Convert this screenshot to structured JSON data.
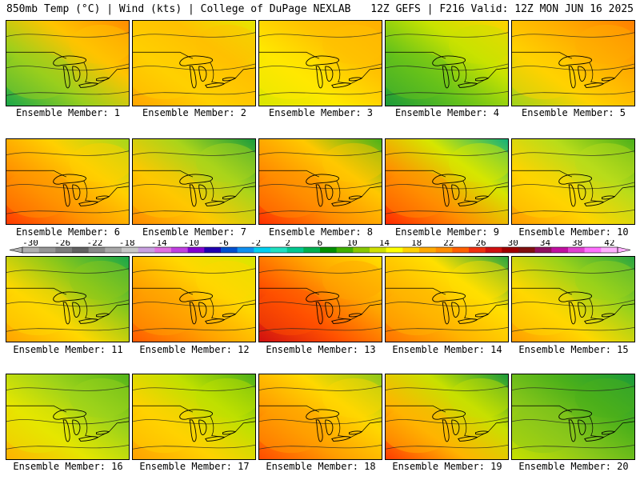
{
  "header": {
    "left_title": "850mb Temp (°C) | Wind (kts) | College of DuPage NEXLAB",
    "right_title": "12Z GEFS | F216 Valid: 12Z MON JUN 16 2025"
  },
  "colorbar": {
    "labels": [
      "-30",
      "-26",
      "-22",
      "-18",
      "-14",
      "-10",
      "-6",
      "-2",
      "2",
      "6",
      "10",
      "14",
      "18",
      "22",
      "26",
      "30",
      "34",
      "38",
      "42"
    ],
    "colors": [
      "#b0b0b0",
      "#969696",
      "#7c7c7c",
      "#626262",
      "#8a8a8a",
      "#a8a8a8",
      "#c8c8c8",
      "#c8a0e0",
      "#e070e0",
      "#c040e0",
      "#8000d0",
      "#2000b0",
      "#0050d0",
      "#1090f0",
      "#00d0f0",
      "#20e0c0",
      "#00c890",
      "#00b050",
      "#009000",
      "#40b000",
      "#88c800",
      "#d0e000",
      "#ffff00",
      "#ffd200",
      "#ffaa00",
      "#ff8c00",
      "#ff6000",
      "#f03010",
      "#d01010",
      "#a00000",
      "#801010",
      "#901060",
      "#c010a0",
      "#e040d0",
      "#ff70ff",
      "#ffb0ff"
    ]
  },
  "members": [
    {
      "label": "Ensemble Member: 1",
      "colors": [
        "#19a74a",
        "#99cf1d",
        "#ffc400",
        "#ff8c00"
      ]
    },
    {
      "label": "Ensemble Member: 2",
      "colors": [
        "#ffa500",
        "#ffd000",
        "#ffc000",
        "#e6e600"
      ]
    },
    {
      "label": "Ensemble Member: 3",
      "colors": [
        "#d8e600",
        "#ffe800",
        "#ffc200",
        "#ffae00"
      ]
    },
    {
      "label": "Ensemble Member: 4",
      "colors": [
        "#1a9a3a",
        "#66c21a",
        "#c9e300",
        "#ffd200"
      ]
    },
    {
      "label": "Ensemble Member: 5",
      "colors": [
        "#9fd21a",
        "#ffd200",
        "#ffad00",
        "#ff7f00"
      ]
    },
    {
      "label": "Ensemble Member: 6",
      "colors": [
        "#ff3a00",
        "#ff9300",
        "#ffd000",
        "#a7d81a"
      ]
    },
    {
      "label": "Ensemble Member: 7",
      "colors": [
        "#ff8a00",
        "#ffc800",
        "#aad41a",
        "#1a9c3c"
      ]
    },
    {
      "label": "Ensemble Member: 8",
      "colors": [
        "#ff3000",
        "#ff8c00",
        "#ffc800",
        "#4ab21a"
      ]
    },
    {
      "label": "Ensemble Member: 9",
      "colors": [
        "#ff2a00",
        "#ff8f00",
        "#d6e600",
        "#12b17a"
      ]
    },
    {
      "label": "Ensemble Member: 10",
      "colors": [
        "#ff9a00",
        "#ffd400",
        "#b8dc1a",
        "#4cb01a"
      ]
    },
    {
      "label": "Ensemble Member: 11",
      "colors": [
        "#ffa200",
        "#ffd800",
        "#8cc81a",
        "#19a74a"
      ]
    },
    {
      "label": "Ensemble Member: 12",
      "colors": [
        "#ff5a00",
        "#ffa000",
        "#ffd800",
        "#d8e600"
      ]
    },
    {
      "label": "Ensemble Member: 13",
      "colors": [
        "#d01010",
        "#ff5000",
        "#ffa400",
        "#ffe000"
      ]
    },
    {
      "label": "Ensemble Member: 14",
      "colors": [
        "#ff7000",
        "#ffb400",
        "#ffe000",
        "#2aa640"
      ]
    },
    {
      "label": "Ensemble Member: 15",
      "colors": [
        "#ff9c00",
        "#ffd800",
        "#9ad21a",
        "#2aa640"
      ]
    },
    {
      "label": "Ensemble Member: 16",
      "colors": [
        "#ffb200",
        "#e6e600",
        "#9cd21a",
        "#52b41a"
      ]
    },
    {
      "label": "Ensemble Member: 17",
      "colors": [
        "#ffa000",
        "#ffd200",
        "#bfe000",
        "#4cb01a"
      ]
    },
    {
      "label": "Ensemble Member: 18",
      "colors": [
        "#ff4a00",
        "#ff9e00",
        "#ffd800",
        "#8cc81a"
      ]
    },
    {
      "label": "Ensemble Member: 19",
      "colors": [
        "#ff3a00",
        "#ffb400",
        "#c8e000",
        "#1a9a3a"
      ]
    },
    {
      "label": "Ensemble Member: 20",
      "colors": [
        "#c8e000",
        "#8cc81a",
        "#4cb01a",
        "#1a9a3a"
      ]
    }
  ]
}
